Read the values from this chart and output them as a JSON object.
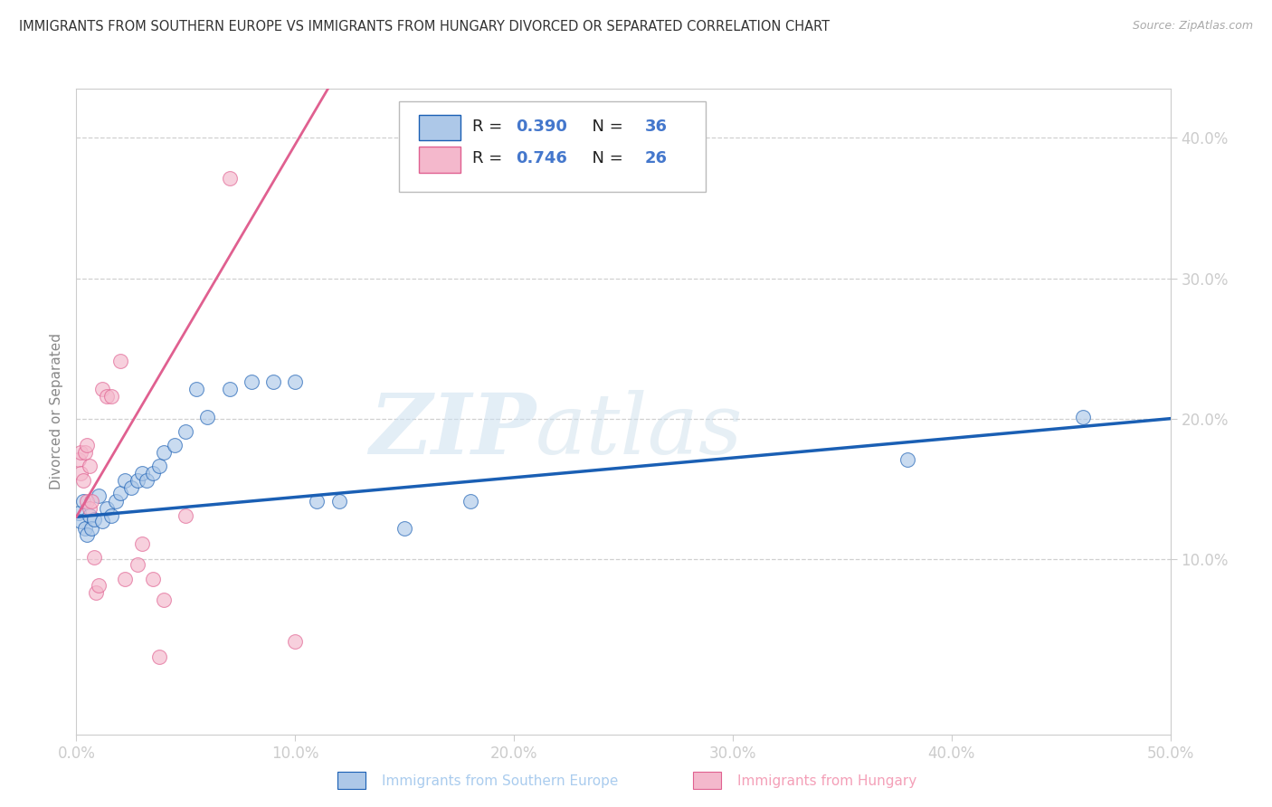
{
  "title": "IMMIGRANTS FROM SOUTHERN EUROPE VS IMMIGRANTS FROM HUNGARY DIVORCED OR SEPARATED CORRELATION CHART",
  "source": "Source: ZipAtlas.com",
  "xlabel_blue": "Immigrants from Southern Europe",
  "xlabel_pink": "Immigrants from Hungary",
  "ylabel": "Divorced or Separated",
  "watermark_zip": "ZIP",
  "watermark_atlas": "atlas",
  "blue_R": 0.39,
  "blue_N": 36,
  "pink_R": 0.746,
  "pink_N": 26,
  "xlim": [
    0.0,
    0.5
  ],
  "ylim": [
    -0.025,
    0.435
  ],
  "yticks": [
    0.1,
    0.2,
    0.3,
    0.4
  ],
  "xticks": [
    0.0,
    0.1,
    0.2,
    0.3,
    0.4,
    0.5
  ],
  "blue_scatter_x": [
    0.001,
    0.002,
    0.003,
    0.004,
    0.005,
    0.006,
    0.007,
    0.008,
    0.01,
    0.012,
    0.014,
    0.016,
    0.018,
    0.02,
    0.022,
    0.025,
    0.028,
    0.03,
    0.032,
    0.035,
    0.038,
    0.04,
    0.045,
    0.05,
    0.055,
    0.06,
    0.07,
    0.08,
    0.09,
    0.1,
    0.11,
    0.12,
    0.15,
    0.18,
    0.38,
    0.46
  ],
  "blue_scatter_y": [
    0.133,
    0.127,
    0.141,
    0.122,
    0.117,
    0.131,
    0.122,
    0.128,
    0.145,
    0.127,
    0.136,
    0.131,
    0.141,
    0.147,
    0.156,
    0.151,
    0.156,
    0.161,
    0.156,
    0.161,
    0.166,
    0.176,
    0.181,
    0.191,
    0.221,
    0.201,
    0.221,
    0.226,
    0.226,
    0.226,
    0.141,
    0.141,
    0.122,
    0.141,
    0.171,
    0.201
  ],
  "pink_scatter_x": [
    0.001,
    0.002,
    0.002,
    0.003,
    0.004,
    0.005,
    0.005,
    0.006,
    0.006,
    0.007,
    0.008,
    0.009,
    0.01,
    0.012,
    0.014,
    0.016,
    0.02,
    0.022,
    0.028,
    0.03,
    0.035,
    0.04,
    0.05,
    0.07,
    0.1,
    0.038
  ],
  "pink_scatter_y": [
    0.171,
    0.176,
    0.161,
    0.156,
    0.176,
    0.181,
    0.141,
    0.136,
    0.166,
    0.141,
    0.101,
    0.076,
    0.081,
    0.221,
    0.216,
    0.216,
    0.241,
    0.086,
    0.096,
    0.111,
    0.086,
    0.071,
    0.131,
    0.371,
    0.041,
    0.03
  ],
  "blue_color": "#adc8e8",
  "blue_line_color": "#1a5fb4",
  "pink_color": "#f4b8cc",
  "pink_line_color": "#e06090",
  "scatter_size": 130,
  "scatter_alpha": 0.65,
  "background_color": "#ffffff",
  "grid_color": "#d0d0d0",
  "blue_trendline_x0": 0.0,
  "blue_trendline_y0": 0.13,
  "blue_trendline_x1": 0.5,
  "blue_trendline_y1": 0.2,
  "pink_trendline_x0": 0.0,
  "pink_trendline_y0": 0.13,
  "pink_trendline_x1": 0.115,
  "pink_trendline_y1": 0.435
}
